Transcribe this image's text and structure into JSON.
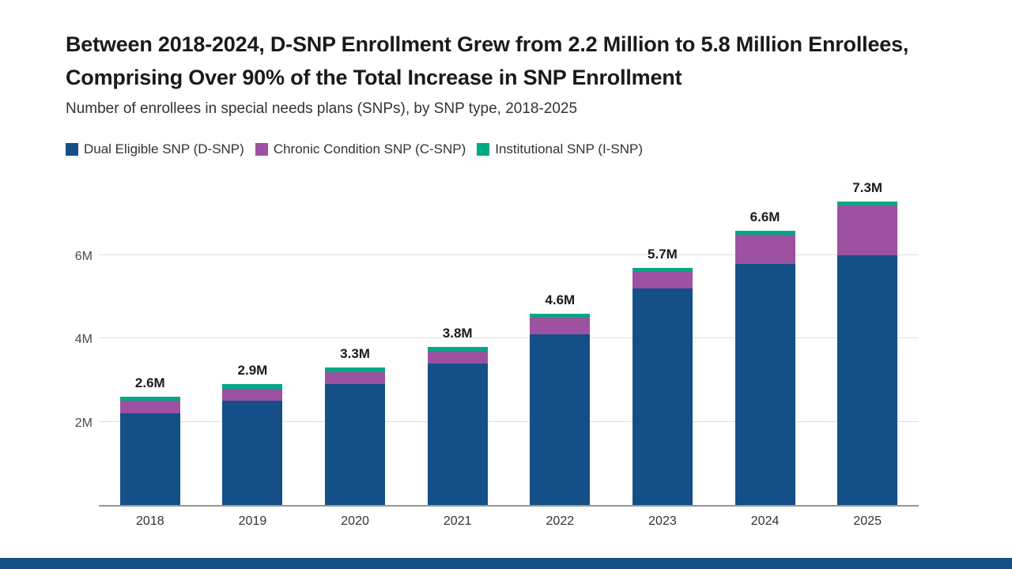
{
  "chart_data": {
    "type": "bar",
    "stacked": true,
    "title": "Between 2018-2024, D-SNP Enrollment Grew from 2.2 Million to 5.8 Million Enrollees, Comprising Over 90% of the Total Increase in SNP Enrollment",
    "subtitle": "Number of enrollees in special needs plans (SNPs), by SNP type, 2018-2025",
    "categories": [
      "2018",
      "2019",
      "2020",
      "2021",
      "2022",
      "2023",
      "2024",
      "2025"
    ],
    "series": [
      {
        "name": "Dual Eligible SNP (D-SNP)",
        "color": "#144f87",
        "values": [
          2.2,
          2.5,
          2.9,
          3.4,
          4.1,
          5.2,
          5.8,
          6.0
        ]
      },
      {
        "name": "Chronic Condition SNP (C-SNP)",
        "color": "#9c51a1",
        "values": [
          0.3,
          0.3,
          0.3,
          0.3,
          0.4,
          0.4,
          0.7,
          1.2
        ]
      },
      {
        "name": "Institutional SNP (I-SNP)",
        "color": "#00a884",
        "values": [
          0.1,
          0.1,
          0.1,
          0.1,
          0.1,
          0.1,
          0.1,
          0.1
        ]
      }
    ],
    "total_labels": [
      "2.6M",
      "2.9M",
      "3.3M",
      "3.8M",
      "4.6M",
      "5.7M",
      "6.6M",
      "7.3M"
    ],
    "yticks": [
      {
        "value": 2,
        "label": "2M"
      },
      {
        "value": 4,
        "label": "4M"
      },
      {
        "value": 6,
        "label": "6M"
      }
    ],
    "ylim": [
      0,
      7.8
    ],
    "grid": "horizontal",
    "legend_position": "top"
  },
  "colors": {
    "footer_bar": "#144f87",
    "background": "#ffffff"
  }
}
